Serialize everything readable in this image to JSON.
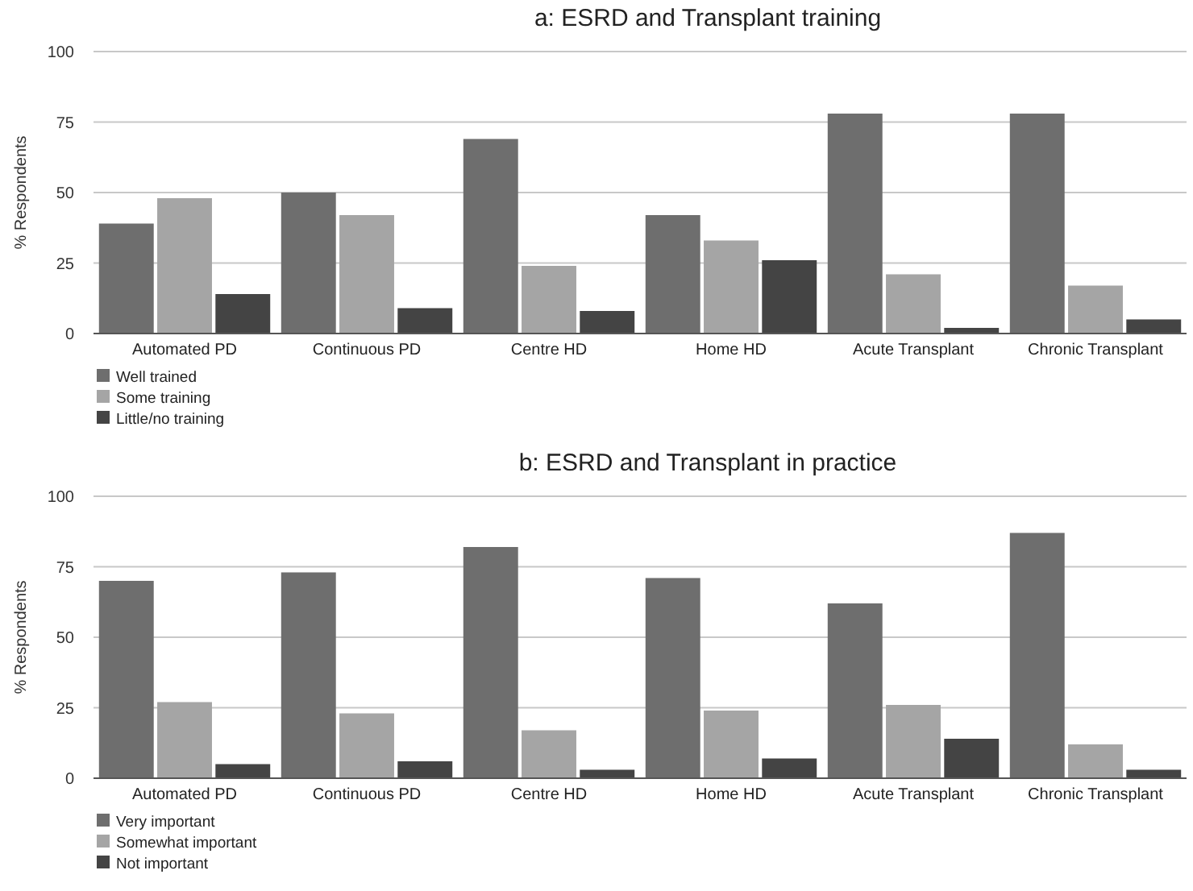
{
  "chart_data": [
    {
      "type": "bar",
      "title": "a: ESRD and Transplant training",
      "ylabel": "% Respondents",
      "categories": [
        "Automated PD",
        "Continuous PD",
        "Centre HD",
        "Home HD",
        "Acute Transplant",
        "Chronic Transplant"
      ],
      "series": [
        {
          "name": "Well trained",
          "color": "#6e6e6e",
          "values": [
            39,
            50,
            69,
            42,
            78,
            78
          ]
        },
        {
          "name": "Some training",
          "color": "#a5a5a5",
          "values": [
            48,
            42,
            24,
            33,
            21,
            17
          ]
        },
        {
          "name": "Little/no training",
          "color": "#444444",
          "values": [
            14,
            9,
            8,
            26,
            2,
            5
          ]
        }
      ],
      "ylim": [
        0,
        100
      ],
      "yticks": [
        0,
        25,
        50,
        75,
        100
      ],
      "grid": "y",
      "legend": "bottom left"
    },
    {
      "type": "bar",
      "title": "b: ESRD and Transplant in practice",
      "ylabel": "% Respondents",
      "categories": [
        "Automated PD",
        "Continuous PD",
        "Centre HD",
        "Home HD",
        "Acute Transplant",
        "Chronic Transplant"
      ],
      "series": [
        {
          "name": "Very important",
          "color": "#6e6e6e",
          "values": [
            70,
            73,
            82,
            71,
            62,
            87
          ]
        },
        {
          "name": "Somewhat important",
          "color": "#a5a5a5",
          "values": [
            27,
            23,
            17,
            24,
            26,
            12
          ]
        },
        {
          "name": "Not important",
          "color": "#444444",
          "values": [
            5,
            6,
            3,
            7,
            14,
            3
          ]
        }
      ],
      "ylim": [
        0,
        100
      ],
      "yticks": [
        0,
        25,
        50,
        75,
        100
      ],
      "grid": "y",
      "legend": "bottom left"
    }
  ]
}
